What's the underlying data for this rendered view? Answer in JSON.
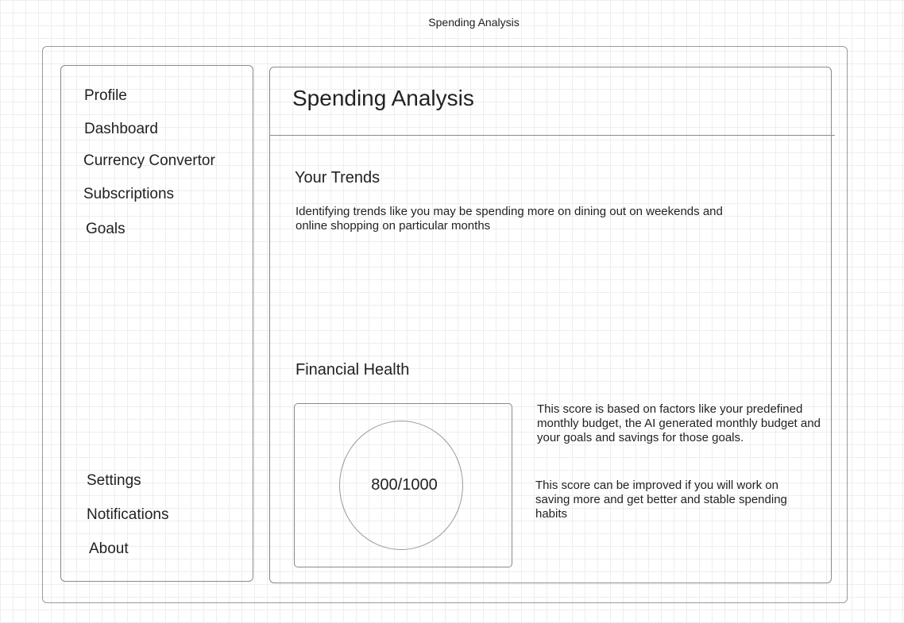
{
  "window": {
    "title": "Spending Analysis"
  },
  "sidebar": {
    "items": [
      {
        "label": "Profile"
      },
      {
        "label": "Dashboard"
      },
      {
        "label": "Currency Convertor"
      },
      {
        "label": "Subscriptions"
      },
      {
        "label": "Goals"
      }
    ],
    "bottom_items": [
      {
        "label": "Settings"
      },
      {
        "label": "Notifications"
      },
      {
        "label": "About"
      }
    ]
  },
  "main": {
    "title": "Spending Analysis",
    "trends": {
      "heading": "Your Trends",
      "text": "Identifying trends like you may be spending more on dining out on weekends and online shopping on particular months"
    },
    "financial_health": {
      "heading": "Financial Health",
      "score": "800/1000",
      "description": "This score is based on factors like your predefined monthly budget, the AI generated monthly budget and your goals and savings for those goals.",
      "improvement": "This score can be improved if you will work on saving more and get better and stable spending habits"
    }
  }
}
